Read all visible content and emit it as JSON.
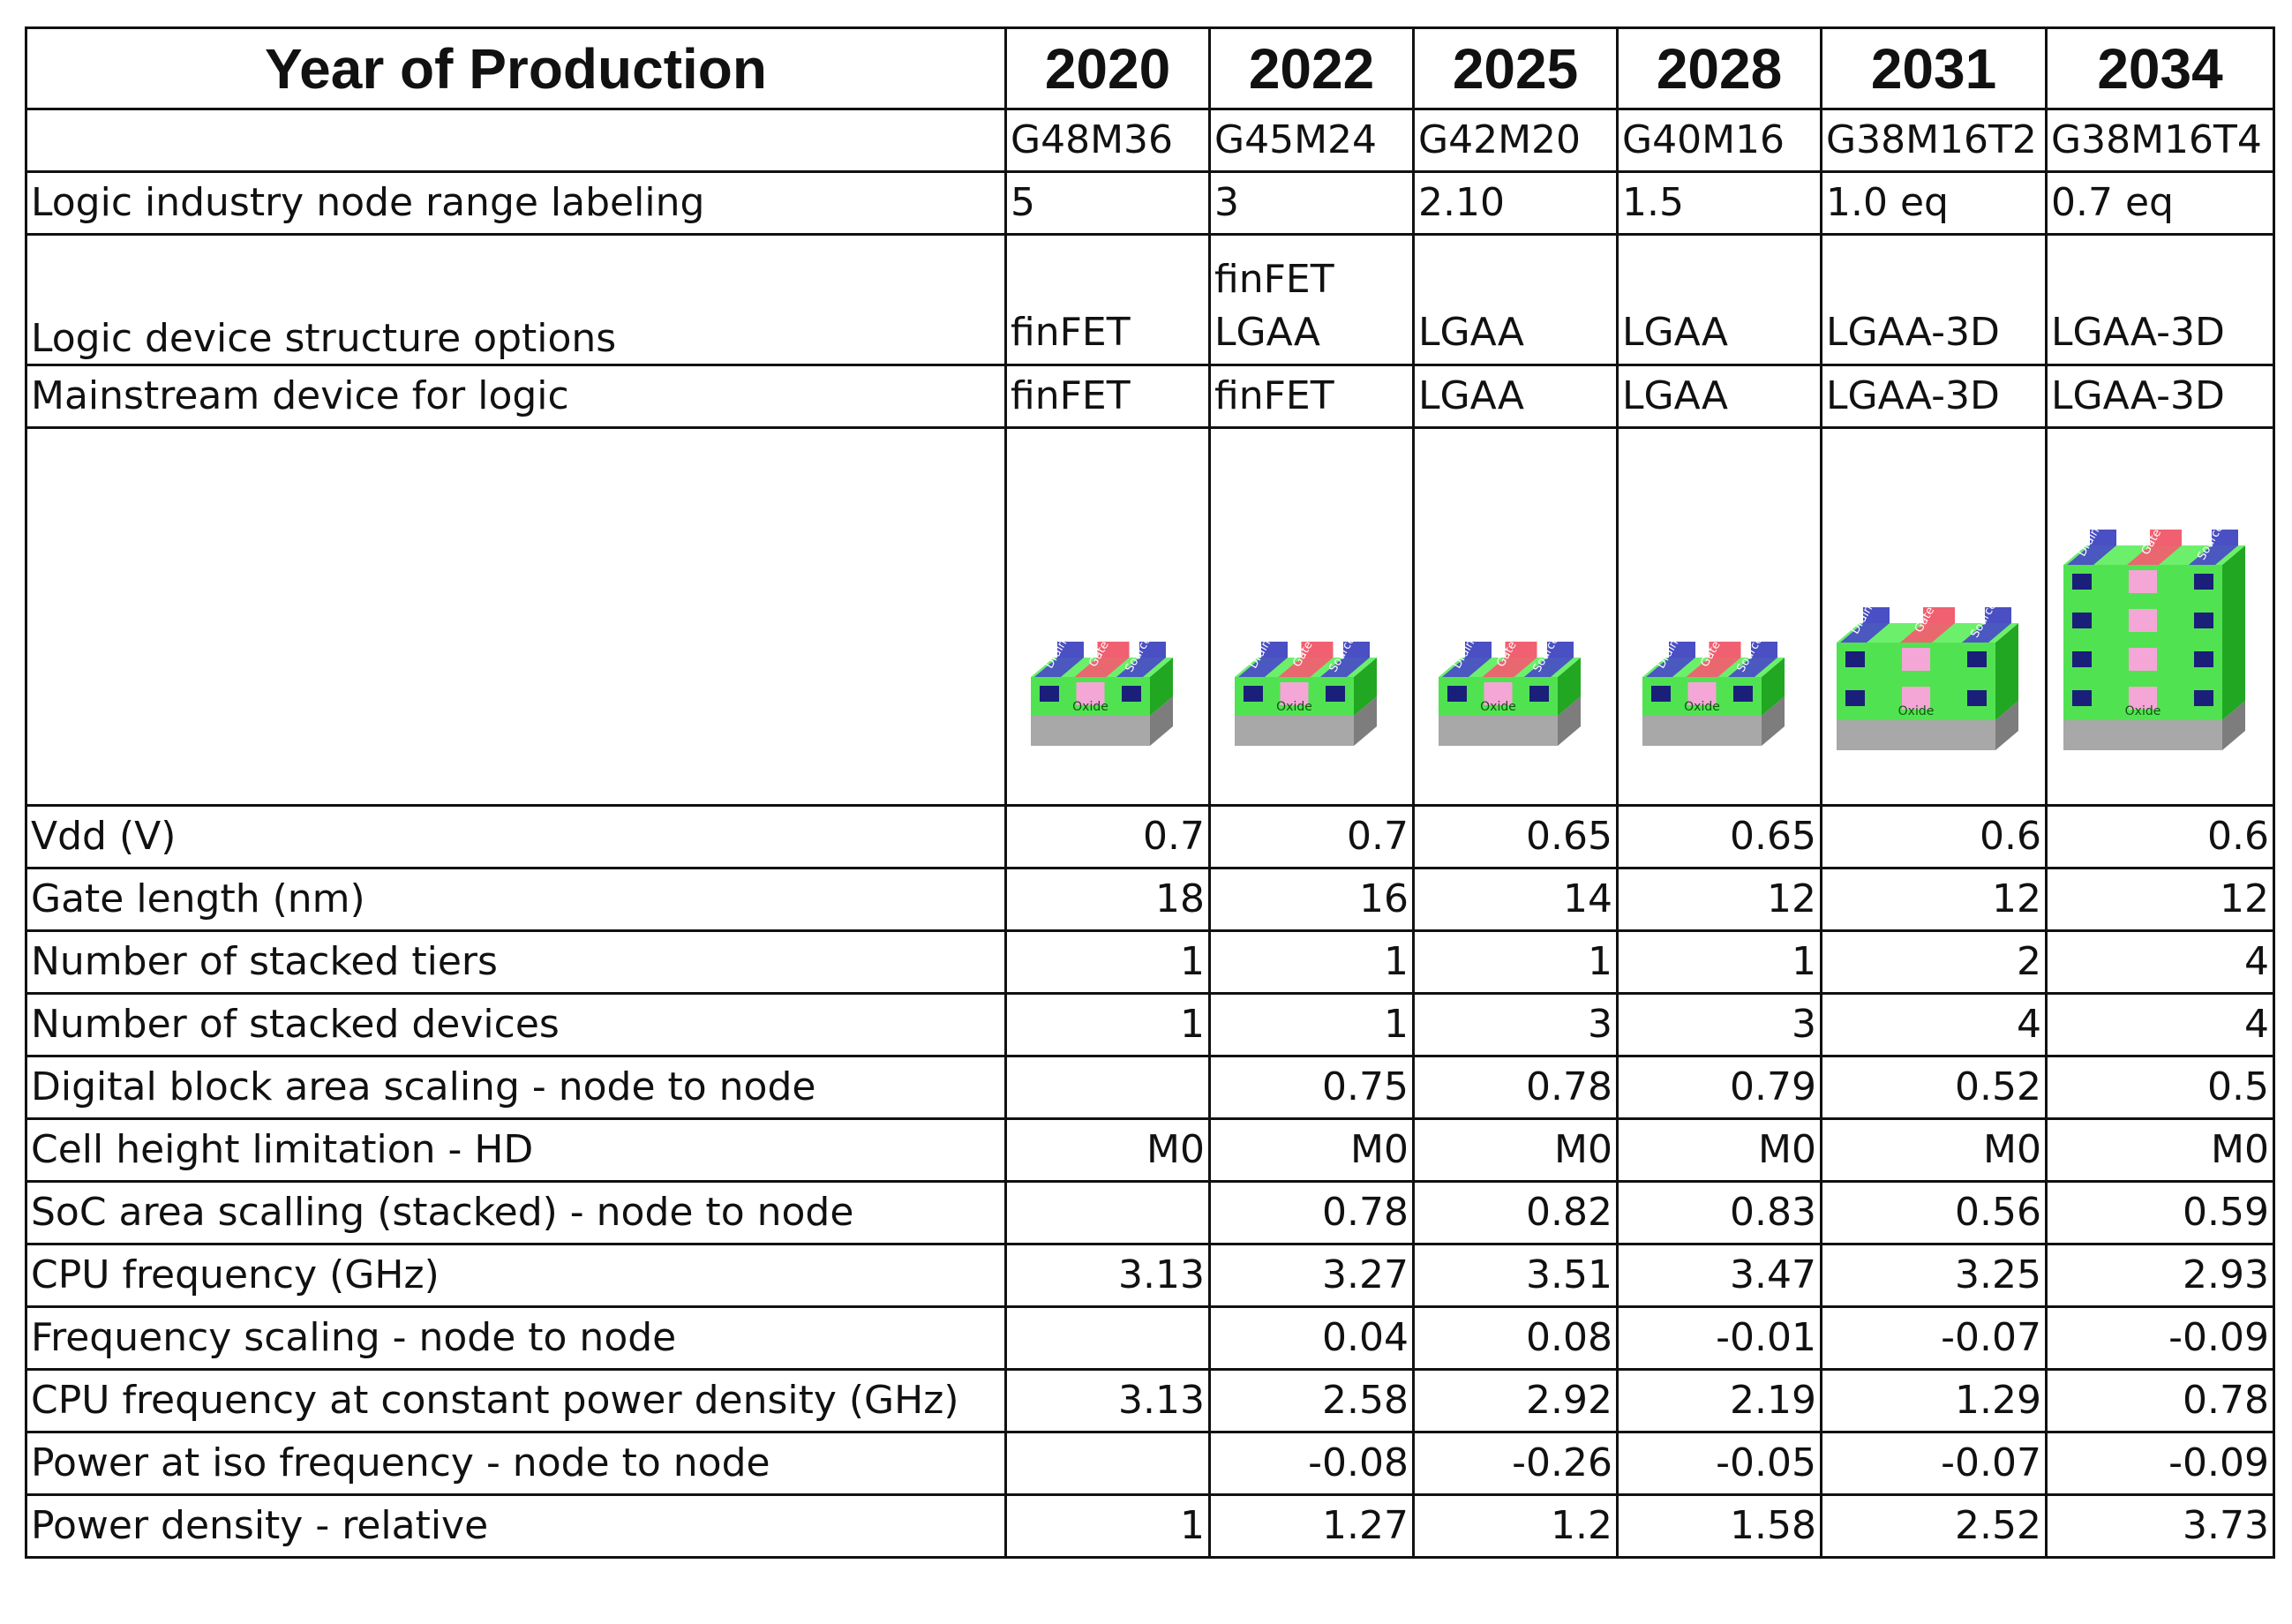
{
  "header": {
    "title": "Year of Production",
    "years": [
      "2020",
      "2022",
      "2025",
      "2028",
      "2031",
      "2034"
    ]
  },
  "node_names": [
    "G48M36",
    "G45M24",
    "G42M20",
    "G40M16",
    "G38M16T2",
    "G38M16T4"
  ],
  "rows": {
    "node_range": {
      "label": "Logic industry node range labeling",
      "values": [
        "5",
        "3",
        "2.10",
        "1.5",
        "1.0 eq",
        "0.7 eq"
      ]
    },
    "structure": {
      "label": "Logic device structure options",
      "values": [
        [
          "finFET"
        ],
        [
          "finFET",
          "LGAA"
        ],
        [
          "LGAA"
        ],
        [
          "LGAA"
        ],
        [
          "LGAA-3D"
        ],
        [
          "LGAA-3D"
        ]
      ]
    },
    "mainstream": {
      "label": "Mainstream device for logic",
      "values": [
        "finFET",
        "finFET",
        "LGAA",
        "LGAA",
        "LGAA-3D",
        "LGAA-3D"
      ]
    }
  },
  "device_labels": {
    "drain": "Drain",
    "gate": "Gate",
    "source": "Source",
    "oxide": "Oxide"
  },
  "device_tiers": [
    1,
    1,
    1,
    1,
    2,
    4
  ],
  "colors": {
    "drain_source": "#4a4fc4",
    "gate": "#f06070",
    "oxide": "#33dd33",
    "substrate": "#a8a8a8",
    "channel": "#f4a6d6"
  },
  "metrics": [
    {
      "label": "Vdd (V)",
      "values": [
        "0.7",
        "0.7",
        "0.65",
        "0.65",
        "0.6",
        "0.6"
      ]
    },
    {
      "label": "Gate length (nm)",
      "values": [
        "18",
        "16",
        "14",
        "12",
        "12",
        "12"
      ]
    },
    {
      "label": "Number of stacked tiers",
      "values": [
        "1",
        "1",
        "1",
        "1",
        "2",
        "4"
      ]
    },
    {
      "label": "Number of stacked devices",
      "values": [
        "1",
        "1",
        "3",
        "3",
        "4",
        "4"
      ]
    },
    {
      "label": "Digital block area scaling - node to node",
      "values": [
        "",
        "0.75",
        "0.78",
        "0.79",
        "0.52",
        "0.5"
      ]
    },
    {
      "label": "Cell height limitation - HD",
      "values": [
        "M0",
        "M0",
        "M0",
        "M0",
        "M0",
        "M0"
      ]
    },
    {
      "label": "SoC area scalling (stacked) - node to node",
      "values": [
        "",
        "0.78",
        "0.82",
        "0.83",
        "0.56",
        "0.59"
      ]
    },
    {
      "label": "CPU frequency (GHz)",
      "values": [
        "3.13",
        "3.27",
        "3.51",
        "3.47",
        "3.25",
        "2.93"
      ]
    },
    {
      "label": "Frequency scaling - node to node",
      "values": [
        "",
        "0.04",
        "0.08",
        "-0.01",
        "-0.07",
        "-0.09"
      ]
    },
    {
      "label": "CPU frequency at constant power density (GHz)",
      "values": [
        "3.13",
        "2.58",
        "2.92",
        "2.19",
        "1.29",
        "0.78"
      ]
    },
    {
      "label": "Power at iso frequency - node to node",
      "values": [
        "",
        "-0.08",
        "-0.26",
        "-0.05",
        "-0.07",
        "-0.09"
      ]
    },
    {
      "label": "Power density - relative",
      "values": [
        "1",
        "1.27",
        "1.2",
        "1.58",
        "2.52",
        "3.73"
      ]
    }
  ]
}
